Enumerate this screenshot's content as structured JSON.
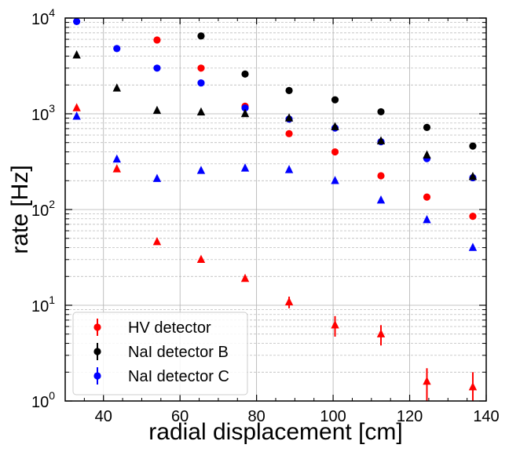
{
  "chart_data": {
    "type": "scatter",
    "xlabel": "radial displacement [cm]",
    "ylabel": "rate [Hz]",
    "xlim": [
      30,
      140
    ],
    "ylim": [
      1,
      10000
    ],
    "yscale": "log",
    "grid": true,
    "legend_position": "lower-left",
    "x_ticks": [
      "40",
      "60",
      "80",
      "100",
      "120",
      "140"
    ],
    "y_ticks": [
      {
        "base": "10",
        "exp": "0",
        "value": 1
      },
      {
        "base": "10",
        "exp": "1",
        "value": 10
      },
      {
        "base": "10",
        "exp": "2",
        "value": 100
      },
      {
        "base": "10",
        "exp": "3",
        "value": 1000
      },
      {
        "base": "10",
        "exp": "4",
        "value": 10000
      }
    ],
    "series": [
      {
        "name": "HV detector",
        "color": "#ff0000",
        "marker": "circle",
        "x": [
          54.0,
          65.5,
          77.0,
          88.5,
          100.5,
          112.5,
          124.5,
          136.5
        ],
        "y": [
          5900,
          3000,
          1200,
          620,
          400,
          225,
          135,
          85
        ]
      },
      {
        "name": "NaI detector B",
        "color": "#000000",
        "marker": "circle",
        "x": [
          65.5,
          77.0,
          88.5,
          100.5,
          112.5,
          124.5,
          136.5
        ],
        "y": [
          6500,
          2600,
          1750,
          1400,
          1050,
          720,
          460
        ]
      },
      {
        "name": "NaI detector C",
        "color": "#0000ff",
        "marker": "circle",
        "x": [
          33.0,
          43.5,
          54.0,
          65.5,
          77.0,
          88.5,
          100.5,
          112.5,
          124.5,
          136.5
        ],
        "y": [
          9200,
          4800,
          3000,
          2100,
          1150,
          880,
          710,
          510,
          340,
          215
        ]
      },
      {
        "color": "#ff0000",
        "marker": "triangle",
        "x": [
          33.0,
          43.5,
          54.0,
          65.5,
          77.0,
          88.5,
          100.5,
          112.5,
          124.5,
          136.5
        ],
        "y": [
          1150,
          265,
          46,
          30,
          19,
          10.8,
          6.2,
          5.0,
          1.6,
          1.4
        ],
        "yerr": [
          0,
          0,
          0,
          0,
          0,
          1.5,
          1.5,
          1.2,
          0.6,
          0.6
        ]
      },
      {
        "color": "#000000",
        "marker": "triangle",
        "x": [
          33.0,
          43.5,
          54.0,
          65.5,
          77.0,
          88.5,
          100.5,
          112.5,
          124.5,
          136.5
        ],
        "y": [
          4100,
          1850,
          1080,
          1040,
          1000,
          900,
          730,
          520,
          370,
          220
        ]
      },
      {
        "color": "#0000ff",
        "marker": "triangle",
        "x": [
          33.0,
          43.5,
          54.0,
          65.5,
          77.0,
          88.5,
          100.5,
          112.5,
          124.5,
          136.5
        ],
        "y": [
          940,
          335,
          210,
          255,
          270,
          260,
          200,
          125,
          78,
          40
        ]
      }
    ]
  }
}
